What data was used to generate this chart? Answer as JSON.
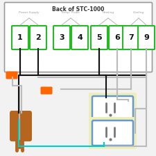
{
  "title": "Back of STC-1000",
  "title_fontsize": 5.5,
  "bg_color": "#f2f2f2",
  "box_bg": "#ffffff",
  "terminal_color": "#22bb22",
  "terminal_bg": "#ffffff",
  "section_labels": [
    "Power Supply",
    "Temp. Probe",
    "Heating",
    "Cooling"
  ],
  "terminal_numbers": [
    [
      "1",
      "2"
    ],
    [
      "3",
      "4"
    ],
    [
      "5",
      "6"
    ],
    [
      "7",
      "9"
    ]
  ],
  "outer_box_color": "#999999",
  "plug_color": "#b5651d",
  "wire_black": "#111111",
  "wire_gray": "#bbbbbb",
  "wire_cyan": "#00cccc",
  "wire_orange": "#ff6600",
  "outlet_border": "#6699cc",
  "outlet_bg": "#ffffff",
  "outlet_outer_bg": "#eeeebb",
  "label_color": "#999999",
  "caret_color": "#aaaaaa",
  "num_color": "#111111"
}
